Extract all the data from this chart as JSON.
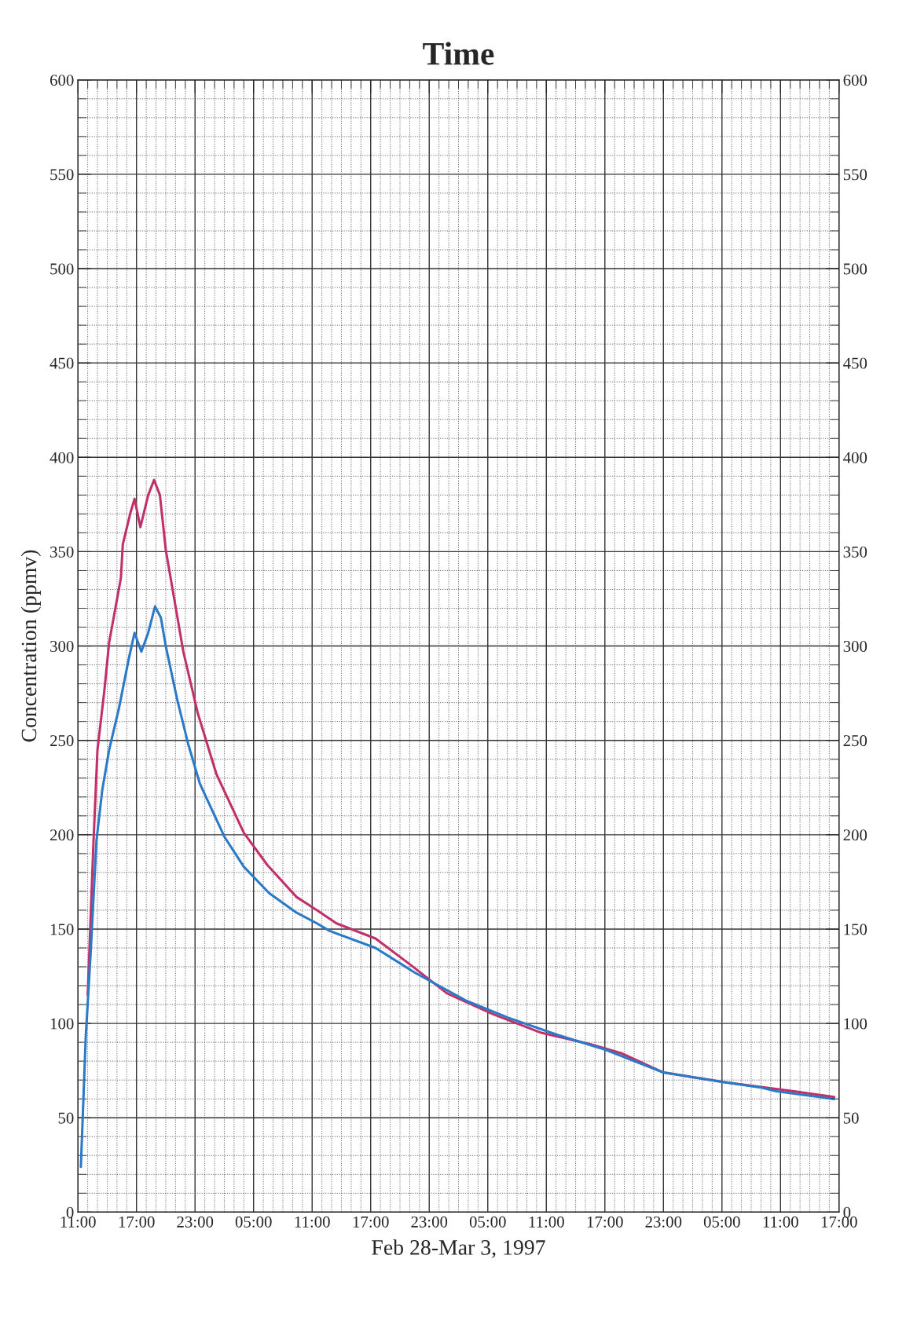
{
  "chart_data": {
    "type": "line",
    "title": "Time",
    "xlabel": "Feb 28-Mar 3, 1997",
    "ylabel": "Concentration (ppmv)",
    "xlim": [
      "1997-02-28T11:00",
      "1997-03-03T17:00"
    ],
    "ylim": [
      0,
      600
    ],
    "y2lim": [
      0,
      600
    ],
    "xticks": [
      {
        "value": "1997-02-28T11:00",
        "label": "11:00"
      },
      {
        "value": "1997-02-28T12:00",
        "label": null
      },
      {
        "value": "1997-02-28T13:00",
        "label": null
      },
      {
        "value": "1997-02-28T14:00",
        "label": null
      },
      {
        "value": "1997-02-28T15:00",
        "label": null
      },
      {
        "value": "1997-02-28T16:00",
        "label": null
      },
      {
        "value": "1997-02-28T17:00",
        "label": "17:00"
      },
      {
        "value": "1997-02-28T18:00",
        "label": null
      },
      {
        "value": "1997-02-28T19:00",
        "label": null
      },
      {
        "value": "1997-02-28T20:00",
        "label": null
      },
      {
        "value": "1997-02-28T21:00",
        "label": null
      },
      {
        "value": "1997-02-28T22:00",
        "label": null
      },
      {
        "value": "1997-02-28T23:00",
        "label": "23:00"
      },
      {
        "value": "1997-03-01T00:00",
        "label": null
      },
      {
        "value": "1997-03-01T01:00",
        "label": null
      },
      {
        "value": "1997-03-01T02:00",
        "label": null
      },
      {
        "value": "1997-03-01T03:00",
        "label": null
      },
      {
        "value": "1997-03-01T04:00",
        "label": null
      },
      {
        "value": "1997-03-01T05:00",
        "label": "05:00"
      },
      {
        "value": "1997-03-01T06:00",
        "label": null
      },
      {
        "value": "1997-03-01T07:00",
        "label": null
      },
      {
        "value": "1997-03-01T08:00",
        "label": null
      },
      {
        "value": "1997-03-01T09:00",
        "label": null
      },
      {
        "value": "1997-03-01T10:00",
        "label": null
      },
      {
        "value": "1997-03-01T11:00",
        "label": "11:00"
      },
      {
        "value": "1997-03-01T12:00",
        "label": null
      },
      {
        "value": "1997-03-01T13:00",
        "label": null
      },
      {
        "value": "1997-03-01T14:00",
        "label": null
      },
      {
        "value": "1997-03-01T15:00",
        "label": null
      },
      {
        "value": "1997-03-01T16:00",
        "label": null
      },
      {
        "value": "1997-03-01T17:00",
        "label": "17:00"
      },
      {
        "value": "1997-03-01T18:00",
        "label": null
      },
      {
        "value": "1997-03-01T19:00",
        "label": null
      },
      {
        "value": "1997-03-01T20:00",
        "label": null
      },
      {
        "value": "1997-03-01T21:00",
        "label": null
      },
      {
        "value": "1997-03-01T22:00",
        "label": null
      },
      {
        "value": "1997-03-01T23:00",
        "label": "23:00"
      },
      {
        "value": "1997-03-02T00:00",
        "label": null
      },
      {
        "value": "1997-03-02T01:00",
        "label": null
      },
      {
        "value": "1997-03-02T02:00",
        "label": null
      },
      {
        "value": "1997-03-02T03:00",
        "label": null
      },
      {
        "value": "1997-03-02T04:00",
        "label": null
      },
      {
        "value": "1997-03-02T05:00",
        "label": "05:00"
      },
      {
        "value": "1997-03-02T06:00",
        "label": null
      },
      {
        "value": "1997-03-02T07:00",
        "label": null
      },
      {
        "value": "1997-03-02T08:00",
        "label": null
      },
      {
        "value": "1997-03-02T09:00",
        "label": null
      },
      {
        "value": "1997-03-02T10:00",
        "label": null
      },
      {
        "value": "1997-03-02T11:00",
        "label": "11:00"
      },
      {
        "value": "1997-03-02T12:00",
        "label": null
      },
      {
        "value": "1997-03-02T13:00",
        "label": null
      },
      {
        "value": "1997-03-02T14:00",
        "label": null
      },
      {
        "value": "1997-03-02T15:00",
        "label": null
      },
      {
        "value": "1997-03-02T16:00",
        "label": null
      },
      {
        "value": "1997-03-02T17:00",
        "label": "17:00"
      },
      {
        "value": "1997-03-02T18:00",
        "label": null
      },
      {
        "value": "1997-03-02T19:00",
        "label": null
      },
      {
        "value": "1997-03-02T20:00",
        "label": null
      },
      {
        "value": "1997-03-02T21:00",
        "label": null
      },
      {
        "value": "1997-03-02T22:00",
        "label": null
      },
      {
        "value": "1997-03-02T23:00",
        "label": "23:00"
      },
      {
        "value": "1997-03-03T00:00",
        "label": null
      },
      {
        "value": "1997-03-03T01:00",
        "label": null
      },
      {
        "value": "1997-03-03T02:00",
        "label": null
      },
      {
        "value": "1997-03-03T03:00",
        "label": null
      },
      {
        "value": "1997-03-03T04:00",
        "label": null
      },
      {
        "value": "1997-03-03T05:00",
        "label": "05:00"
      },
      {
        "value": "1997-03-03T06:00",
        "label": null
      },
      {
        "value": "1997-03-03T07:00",
        "label": null
      },
      {
        "value": "1997-03-03T08:00",
        "label": null
      },
      {
        "value": "1997-03-03T09:00",
        "label": null
      },
      {
        "value": "1997-03-03T10:00",
        "label": null
      },
      {
        "value": "1997-03-03T11:00",
        "label": "11:00"
      },
      {
        "value": "1997-03-03T12:00",
        "label": null
      },
      {
        "value": "1997-03-03T13:00",
        "label": null
      },
      {
        "value": "1997-03-03T14:00",
        "label": null
      },
      {
        "value": "1997-03-03T15:00",
        "label": null
      },
      {
        "value": "1997-03-03T16:00",
        "label": null
      },
      {
        "value": "1997-03-03T17:00",
        "label": "17:00"
      }
    ],
    "yticks": [
      0,
      {
        "value": 10,
        "label": null
      },
      {
        "value": 20,
        "label": null
      },
      {
        "value": 30,
        "label": null
      },
      {
        "value": 40,
        "label": null
      },
      50,
      {
        "value": 60,
        "label": null
      },
      {
        "value": 70,
        "label": null
      },
      {
        "value": 80,
        "label": null
      },
      {
        "value": 90,
        "label": null
      },
      100,
      {
        "value": 110,
        "label": null
      },
      {
        "value": 120,
        "label": null
      },
      {
        "value": 130,
        "label": null
      },
      {
        "value": 140,
        "label": null
      },
      150,
      {
        "value": 160,
        "label": null
      },
      {
        "value": 170,
        "label": null
      },
      {
        "value": 180,
        "label": null
      },
      {
        "value": 190,
        "label": null
      },
      200,
      {
        "value": 210,
        "label": null
      },
      {
        "value": 220,
        "label": null
      },
      {
        "value": 230,
        "label": null
      },
      {
        "value": 240,
        "label": null
      },
      250,
      {
        "value": 260,
        "label": null
      },
      {
        "value": 270,
        "label": null
      },
      {
        "value": 280,
        "label": null
      },
      {
        "value": 290,
        "label": null
      },
      300,
      {
        "value": 310,
        "label": null
      },
      {
        "value": 320,
        "label": null
      },
      {
        "value": 330,
        "label": null
      },
      {
        "value": 340,
        "label": null
      },
      350,
      {
        "value": 360,
        "label": null
      },
      {
        "value": 370,
        "label": null
      },
      {
        "value": 380,
        "label": null
      },
      {
        "value": 390,
        "label": null
      },
      400,
      {
        "value": 410,
        "label": null
      },
      {
        "value": 420,
        "label": null
      },
      {
        "value": 430,
        "label": null
      },
      {
        "value": 440,
        "label": null
      },
      450,
      {
        "value": 460,
        "label": null
      },
      {
        "value": 470,
        "label": null
      },
      {
        "value": 480,
        "label": null
      },
      {
        "value": 490,
        "label": null
      },
      500,
      {
        "value": 510,
        "label": null
      },
      {
        "value": 520,
        "label": null
      },
      {
        "value": 530,
        "label": null
      },
      {
        "value": 540,
        "label": null
      },
      550,
      {
        "value": 560,
        "label": null
      },
      {
        "value": 570,
        "label": null
      },
      {
        "value": 580,
        "label": null
      },
      {
        "value": 590,
        "label": null
      },
      600
    ],
    "y2ticks": [
      0,
      {
        "value": 10,
        "label": null
      },
      {
        "value": 20,
        "label": null
      },
      {
        "value": 30,
        "label": null
      },
      {
        "value": 40,
        "label": null
      },
      50,
      {
        "value": 60,
        "label": null
      },
      {
        "value": 70,
        "label": null
      },
      {
        "value": 80,
        "label": null
      },
      {
        "value": 90,
        "label": null
      },
      100,
      {
        "value": 110,
        "label": null
      },
      {
        "value": 120,
        "label": null
      },
      {
        "value": 130,
        "label": null
      },
      {
        "value": 140,
        "label": null
      },
      150,
      {
        "value": 160,
        "label": null
      },
      {
        "value": 170,
        "label": null
      },
      {
        "value": 180,
        "label": null
      },
      {
        "value": 190,
        "label": null
      },
      200,
      {
        "value": 210,
        "label": null
      },
      {
        "value": 220,
        "label": null
      },
      {
        "value": 230,
        "label": null
      },
      {
        "value": 240,
        "label": null
      },
      250,
      {
        "value": 260,
        "label": null
      },
      {
        "value": 270,
        "label": null
      },
      {
        "value": 280,
        "label": null
      },
      {
        "value": 290,
        "label": null
      },
      300,
      {
        "value": 310,
        "label": null
      },
      {
        "value": 320,
        "label": null
      },
      {
        "value": 330,
        "label": null
      },
      {
        "value": 340,
        "label": null
      },
      350,
      {
        "value": 360,
        "label": null
      },
      {
        "value": 370,
        "label": null
      },
      {
        "value": 380,
        "label": null
      },
      {
        "value": 390,
        "label": null
      },
      400,
      {
        "value": 410,
        "label": null
      },
      {
        "value": 420,
        "label": null
      },
      {
        "value": 430,
        "label": null
      },
      {
        "value": 440,
        "label": null
      },
      450,
      {
        "value": 460,
        "label": null
      },
      {
        "value": 470,
        "label": null
      },
      {
        "value": 480,
        "label": null
      },
      {
        "value": 490,
        "label": null
      },
      500,
      {
        "value": 510,
        "label": null
      },
      {
        "value": 520,
        "label": null
      },
      {
        "value": 530,
        "label": null
      },
      {
        "value": 540,
        "label": null
      },
      550,
      {
        "value": 560,
        "label": null
      },
      {
        "value": 570,
        "label": null
      },
      {
        "value": 580,
        "label": null
      },
      {
        "value": 590,
        "label": null
      },
      600
    ],
    "grid": true,
    "marker": "none",
    "line_style": "solid",
    "series": [
      {
        "color": "#c2306a",
        "values": [
          115,
          197,
          245,
          276,
          302,
          336,
          354,
          371,
          378,
          363,
          380,
          388,
          380,
          351,
          315,
          297,
          264,
          232,
          201,
          184,
          167,
          160,
          153,
          145,
          131,
          116,
          105,
          95,
          89,
          84,
          74,
          69,
          65,
          61
        ],
        "x": [
          "1997-02-28T12:00",
          "1997-02-28T12:36",
          "1997-02-28T13:00",
          "1997-02-28T13:42",
          "1997-02-28T14:12",
          "1997-02-28T15:24",
          "1997-02-28T15:36",
          "1997-02-28T16:24",
          "1997-02-28T16:48",
          "1997-02-28T17:24",
          "1997-02-28T18:12",
          "1997-02-28T18:48",
          "1997-02-28T19:24",
          "1997-02-28T20:00",
          "1997-02-28T21:12",
          "1997-02-28T21:48",
          "1997-02-28T23:18",
          "1997-03-01T01:12",
          "1997-03-01T04:00",
          "1997-03-01T06:24",
          "1997-03-01T09:24",
          "1997-03-01T11:30",
          "1997-03-01T13:30",
          "1997-03-01T17:30",
          "1997-03-01T21:06",
          "1997-03-02T00:48",
          "1997-03-02T05:30",
          "1997-03-02T10:30",
          "1997-03-02T15:30",
          "1997-03-02T18:48",
          "1997-03-02T23:00",
          "1997-03-03T05:00",
          "1997-03-03T11:00",
          "1997-03-03T16:30"
        ]
      },
      {
        "color": "#2a7ac8",
        "values": [
          24,
          93,
          137,
          197,
          224,
          245,
          267,
          293,
          307,
          297,
          307,
          321,
          315,
          300,
          271,
          248,
          227,
          199,
          183,
          169,
          159,
          153,
          149,
          140,
          127,
          112,
          103,
          94,
          86,
          74,
          69,
          66,
          64,
          60
        ],
        "x": [
          "1997-02-28T11:18",
          "1997-02-28T11:48",
          "1997-02-28T12:18",
          "1997-02-28T12:54",
          "1997-02-28T13:30",
          "1997-02-28T14:12",
          "1997-02-28T15:12",
          "1997-02-28T16:12",
          "1997-02-28T16:48",
          "1997-02-28T17:30",
          "1997-02-28T18:12",
          "1997-02-28T18:54",
          "1997-02-28T19:30",
          "1997-02-28T20:00",
          "1997-02-28T21:12",
          "1997-02-28T22:18",
          "1997-02-28T23:30",
          "1997-03-01T02:00",
          "1997-03-01T04:00",
          "1997-03-01T06:36",
          "1997-03-01T09:18",
          "1997-03-01T11:30",
          "1997-03-01T12:48",
          "1997-03-01T17:30",
          "1997-03-01T21:30",
          "1997-03-02T02:48",
          "1997-03-02T07:06",
          "1997-03-02T12:06",
          "1997-03-02T17:06",
          "1997-03-02T23:00",
          "1997-03-03T05:00",
          "1997-03-03T09:00",
          "1997-03-03T10:36",
          "1997-03-03T16:30"
        ]
      }
    ]
  }
}
